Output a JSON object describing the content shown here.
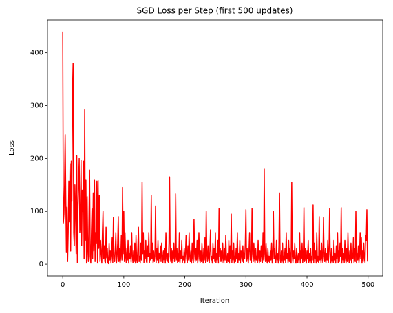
{
  "chart_data": {
    "type": "line",
    "title": "SGD Loss per Step (first 500 updates)",
    "x_label": "Iteration",
    "y_label": "Loss",
    "xlim": [
      -24.95,
      523.95
    ],
    "xticks": [
      0,
      100,
      200,
      300,
      400,
      500
    ],
    "ylim": [
      -22,
      462
    ],
    "yticks": [
      0,
      100,
      200,
      300,
      400
    ],
    "grid": false,
    "x": [
      0,
      1,
      2,
      3,
      4,
      5,
      6,
      7,
      8,
      9,
      10,
      11,
      12,
      13,
      14,
      15,
      16,
      17,
      18,
      19,
      20,
      21,
      22,
      23,
      24,
      25,
      26,
      27,
      28,
      29,
      30,
      31,
      32,
      33,
      34,
      35,
      36,
      37,
      38,
      39,
      40,
      41,
      42,
      43,
      44,
      45,
      46,
      47,
      48,
      49,
      50,
      51,
      52,
      53,
      54,
      55,
      56,
      57,
      58,
      59,
      60,
      61,
      62,
      63,
      64,
      65,
      66,
      67,
      68,
      69,
      70,
      71,
      72,
      73,
      74,
      75,
      76,
      77,
      78,
      79,
      80,
      81,
      82,
      83,
      84,
      85,
      86,
      87,
      88,
      89,
      90,
      91,
      92,
      93,
      94,
      95,
      96,
      97,
      98,
      99,
      100,
      101,
      102,
      103,
      104,
      105,
      106,
      107,
      108,
      109,
      110,
      111,
      112,
      113,
      114,
      115,
      116,
      117,
      118,
      119,
      120,
      121,
      122,
      123,
      124,
      125,
      126,
      127,
      128,
      129,
      130,
      131,
      132,
      133,
      134,
      135,
      136,
      137,
      138,
      139,
      140,
      141,
      142,
      143,
      144,
      145,
      146,
      147,
      148,
      149,
      150,
      151,
      152,
      153,
      154,
      155,
      156,
      157,
      158,
      159,
      160,
      161,
      162,
      163,
      164,
      165,
      166,
      167,
      168,
      169,
      170,
      171,
      172,
      173,
      174,
      175,
      176,
      177,
      178,
      179,
      180,
      181,
      182,
      183,
      184,
      185,
      186,
      187,
      188,
      189,
      190,
      191,
      192,
      193,
      194,
      195,
      196,
      197,
      198,
      199,
      200,
      201,
      202,
      203,
      204,
      205,
      206,
      207,
      208,
      209,
      210,
      211,
      212,
      213,
      214,
      215,
      216,
      217,
      218,
      219,
      220,
      221,
      222,
      223,
      224,
      225,
      226,
      227,
      228,
      229,
      230,
      231,
      232,
      233,
      234,
      235,
      236,
      237,
      238,
      239,
      240,
      241,
      242,
      243,
      244,
      245,
      246,
      247,
      248,
      249,
      250,
      251,
      252,
      253,
      254,
      255,
      256,
      257,
      258,
      259,
      260,
      261,
      262,
      263,
      264,
      265,
      266,
      267,
      268,
      269,
      270,
      271,
      272,
      273,
      274,
      275,
      276,
      277,
      278,
      279,
      280,
      281,
      282,
      283,
      284,
      285,
      286,
      287,
      288,
      289,
      290,
      291,
      292,
      293,
      294,
      295,
      296,
      297,
      298,
      299,
      300,
      301,
      302,
      303,
      304,
      305,
      306,
      307,
      308,
      309,
      310,
      311,
      312,
      313,
      314,
      315,
      316,
      317,
      318,
      319,
      320,
      321,
      322,
      323,
      324,
      325,
      326,
      327,
      328,
      329,
      330,
      331,
      332,
      333,
      334,
      335,
      336,
      337,
      338,
      339,
      340,
      341,
      342,
      343,
      344,
      345,
      346,
      347,
      348,
      349,
      350,
      351,
      352,
      353,
      354,
      355,
      356,
      357,
      358,
      359,
      360,
      361,
      362,
      363,
      364,
      365,
      366,
      367,
      368,
      369,
      370,
      371,
      372,
      373,
      374,
      375,
      376,
      377,
      378,
      379,
      380,
      381,
      382,
      383,
      384,
      385,
      386,
      387,
      388,
      389,
      390,
      391,
      392,
      393,
      394,
      395,
      396,
      397,
      398,
      399,
      400,
      401,
      402,
      403,
      404,
      405,
      406,
      407,
      408,
      409,
      410,
      411,
      412,
      413,
      414,
      415,
      416,
      417,
      418,
      419,
      420,
      421,
      422,
      423,
      424,
      425,
      426,
      427,
      428,
      429,
      430,
      431,
      432,
      433,
      434,
      435,
      436,
      437,
      438,
      439,
      440,
      441,
      442,
      443,
      444,
      445,
      446,
      447,
      448,
      449,
      450,
      451,
      452,
      453,
      454,
      455,
      456,
      457,
      458,
      459,
      460,
      461,
      462,
      463,
      464,
      465,
      466,
      467,
      468,
      469,
      470,
      471,
      472,
      473,
      474,
      475,
      476,
      477,
      478,
      479,
      480,
      481,
      482,
      483,
      484,
      485,
      486,
      487,
      488,
      489,
      490,
      491,
      492,
      493,
      494,
      495,
      496,
      497,
      498,
      499
    ],
    "series": [
      {
        "color": "#ff0000",
        "values": [
          440,
          78,
          95,
          150,
          245,
          130,
          22,
          108,
          5,
          60,
          157,
          80,
          190,
          25,
          195,
          120,
          325,
          380,
          60,
          35,
          150,
          95,
          20,
          205,
          3,
          110,
          155,
          200,
          60,
          75,
          197,
          35,
          140,
          100,
          195,
          10,
          292,
          45,
          160,
          2,
          128,
          30,
          5,
          90,
          178,
          15,
          2,
          60,
          105,
          10,
          135,
          25,
          160,
          5,
          60,
          40,
          157,
          2,
          158,
          30,
          130,
          5,
          45,
          20,
          2,
          60,
          100,
          10,
          35,
          5,
          2,
          70,
          12,
          30,
          3,
          1,
          40,
          8,
          25,
          2,
          15,
          50,
          3,
          88,
          10,
          5,
          25,
          60,
          2,
          15,
          40,
          90,
          5,
          30,
          2,
          12,
          55,
          8,
          145,
          20,
          100,
          5,
          60,
          15,
          3,
          30,
          8,
          45,
          2,
          20,
          10,
          35,
          4,
          60,
          15,
          3,
          25,
          5,
          40,
          2,
          55,
          10,
          3,
          30,
          70,
          5,
          15,
          2,
          40,
          8,
          155,
          20,
          60,
          3,
          25,
          10,
          45,
          5,
          2,
          35,
          15,
          60,
          3,
          20,
          8,
          130,
          10,
          40,
          2,
          25,
          5,
          15,
          110,
          3,
          30,
          8,
          45,
          2,
          20,
          10,
          35,
          5,
          40,
          15,
          3,
          25,
          8,
          30,
          2,
          60,
          10,
          5,
          20,
          3,
          40,
          165,
          15,
          5,
          30,
          2,
          25,
          10,
          40,
          5,
          15,
          133,
          8,
          30,
          3,
          20,
          5,
          60,
          2,
          25,
          10,
          45,
          3,
          15,
          8,
          30,
          2,
          20,
          55,
          10,
          3,
          35,
          8,
          60,
          15,
          5,
          25,
          2,
          40,
          10,
          3,
          85,
          20,
          5,
          30,
          8,
          45,
          2,
          15,
          60,
          10,
          3,
          25,
          5,
          40,
          15,
          2,
          30,
          8,
          50,
          3,
          100,
          20,
          5,
          35,
          10,
          3,
          25,
          65,
          8,
          15,
          2,
          40,
          10,
          30,
          5,
          60,
          3,
          20,
          8,
          45,
          2,
          105,
          15,
          30,
          5,
          25,
          3,
          40,
          10,
          2,
          30,
          8,
          55,
          15,
          3,
          20,
          5,
          45,
          2,
          35,
          10,
          95,
          3,
          25,
          8,
          40,
          2,
          15,
          5,
          30,
          10,
          60,
          3,
          20,
          8,
          45,
          2,
          25,
          15,
          5,
          35,
          3,
          20,
          10,
          40,
          103,
          5,
          30,
          10,
          2,
          25,
          60,
          8,
          15,
          3,
          105,
          20,
          5,
          40,
          10,
          2,
          30,
          8,
          15,
          3,
          45,
          10,
          2,
          25,
          5,
          35,
          15,
          3,
          60,
          8,
          181,
          20,
          5,
          40,
          10,
          2,
          30,
          5,
          15,
          3,
          25,
          8,
          40,
          2,
          15,
          100,
          10,
          30,
          5,
          3,
          45,
          8,
          20,
          2,
          35,
          135,
          10,
          3,
          25,
          5,
          40,
          2,
          15,
          8,
          30,
          3,
          60,
          10,
          20,
          2,
          45,
          5,
          30,
          8,
          2,
          155,
          15,
          3,
          25,
          10,
          40,
          5,
          2,
          30,
          15,
          3,
          20,
          8,
          60,
          2,
          25,
          10,
          40,
          3,
          15,
          107,
          5,
          30,
          8,
          2,
          25,
          10,
          45,
          3,
          20,
          5,
          30,
          2,
          15,
          8,
          112,
          3,
          40,
          10,
          25,
          2,
          60,
          5,
          15,
          3,
          90,
          8,
          25,
          2,
          40,
          10,
          3,
          88,
          15,
          5,
          30,
          2,
          20,
          8,
          45,
          3,
          25,
          105,
          10,
          2,
          30,
          5,
          15,
          3,
          45,
          8,
          20,
          2,
          35,
          10,
          60,
          3,
          25,
          5,
          40,
          15,
          107,
          2,
          30,
          8,
          20,
          3,
          45,
          10,
          2,
          30,
          5,
          60,
          15,
          3,
          25,
          8,
          40,
          2,
          20,
          10,
          50,
          3,
          30,
          5,
          100,
          2,
          20,
          8,
          35,
          3,
          15,
          60,
          10,
          50,
          2,
          25,
          5,
          40,
          10,
          3,
          55,
          45,
          103,
          5
        ]
      }
    ]
  }
}
